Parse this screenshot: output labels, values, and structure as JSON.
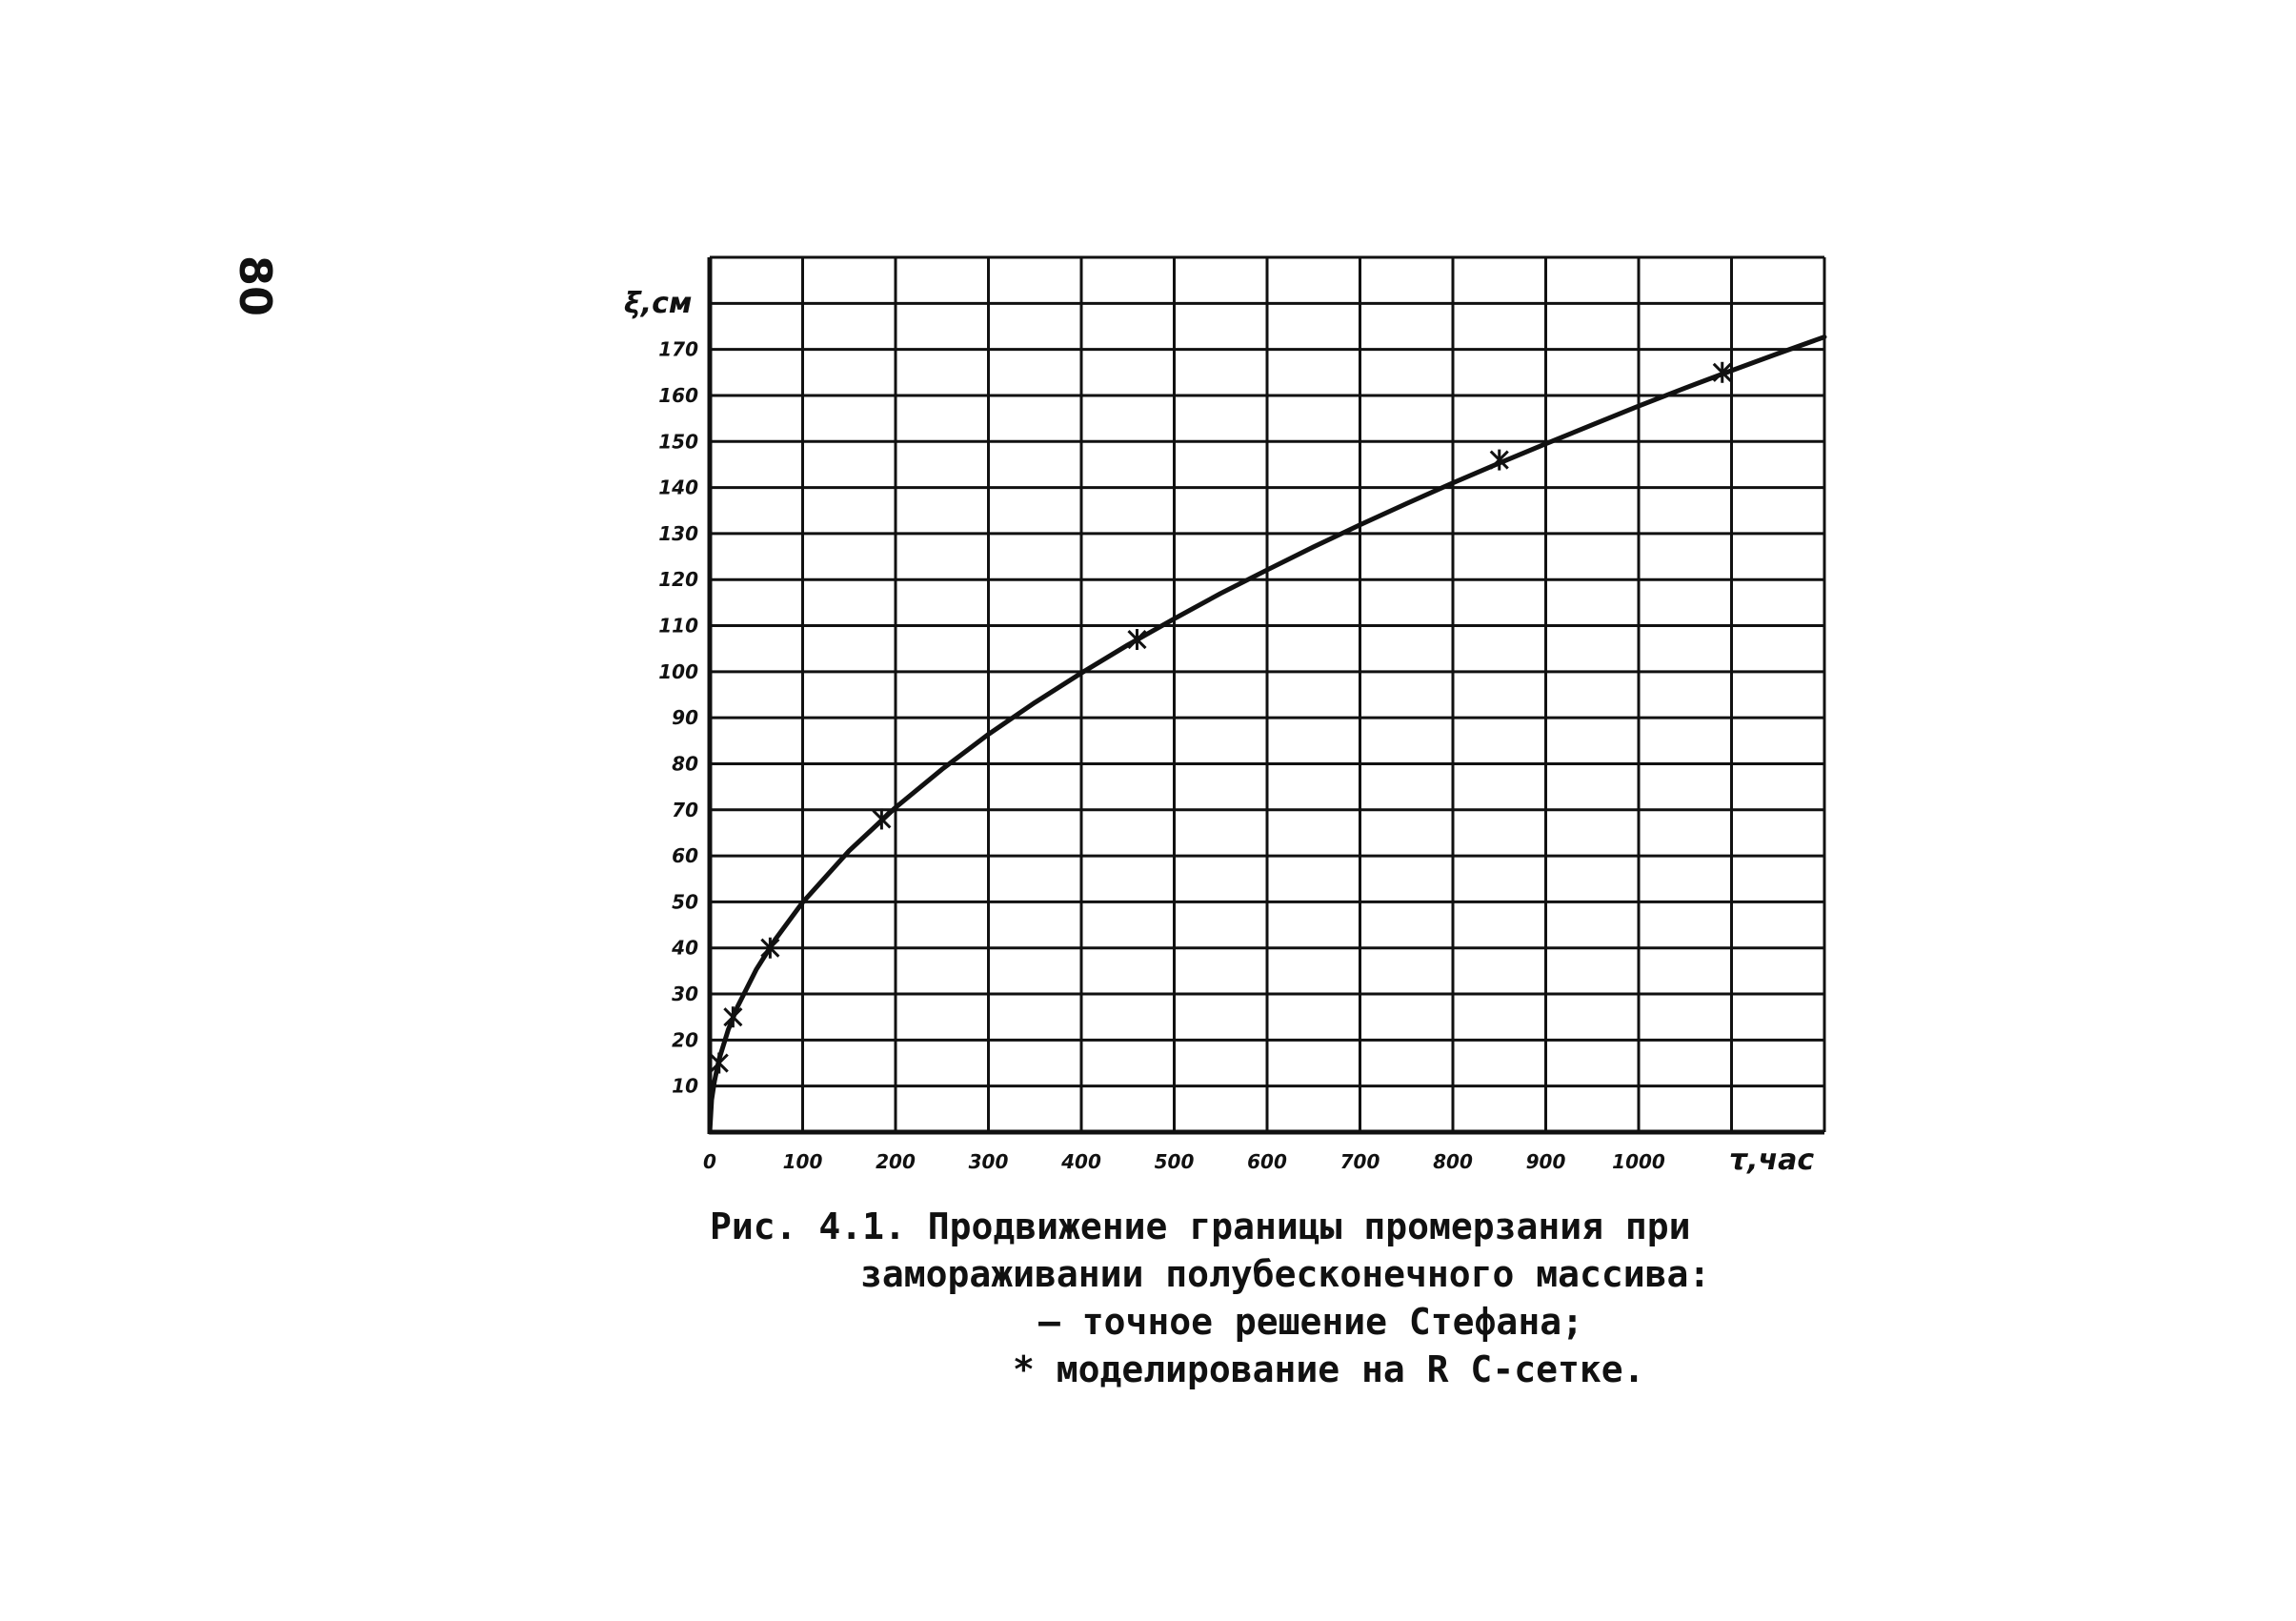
{
  "page": {
    "number": "80"
  },
  "caption": {
    "line1": "Рис. 4.1. Продвижение границы промерзания при",
    "line2": "замораживании полубесконечного массива:",
    "line3": "— точное решение Стефана;",
    "line4": "* моделирование на R C-сетке."
  },
  "chart_data": {
    "type": "line",
    "xlabel": "τ,час",
    "ylabel": "ξ,см",
    "xlim": [
      0,
      1200
    ],
    "ylim": [
      0,
      190
    ],
    "x_ticks": [
      0,
      100,
      200,
      300,
      400,
      500,
      600,
      700,
      800,
      900,
      1000
    ],
    "x_tick_labels": [
      "0",
      "100",
      "200",
      "300",
      "400",
      "500",
      "600",
      "700",
      "800",
      "900",
      "1000"
    ],
    "y_ticks": [
      10,
      20,
      30,
      40,
      50,
      60,
      70,
      80,
      90,
      100,
      110,
      120,
      130,
      140,
      150,
      160,
      170
    ],
    "y_tick_labels": [
      "10",
      "20",
      "30",
      "40",
      "50",
      "60",
      "70",
      "80",
      "90",
      "100",
      "110",
      "120",
      "130",
      "140",
      "150",
      "160",
      "170"
    ],
    "grid": true,
    "series": [
      {
        "name": "точное решение Стефана",
        "style": "line",
        "x": [
          0,
          2,
          5,
          10,
          20,
          30,
          50,
          70,
          100,
          150,
          200,
          250,
          300,
          350,
          400,
          450,
          500,
          550,
          600,
          650,
          700,
          750,
          800,
          850,
          900,
          950,
          1000,
          1050,
          1100,
          1150,
          1200
        ],
        "y": [
          0,
          7,
          11,
          15.8,
          22.3,
          27.3,
          35.3,
          41.7,
          49.9,
          61.1,
          70.5,
          78.8,
          86.4,
          93.3,
          99.7,
          105.8,
          111.5,
          117,
          122.1,
          127.1,
          131.9,
          136.5,
          141,
          145.3,
          149.5,
          153.6,
          157.7,
          161.6,
          165.4,
          169.1,
          172.7
        ]
      },
      {
        "name": "моделирование на R C-сетке",
        "style": "markers",
        "marker": "*",
        "x": [
          10,
          25,
          65,
          185,
          460,
          850,
          1090
        ],
        "y": [
          15,
          25,
          40,
          68,
          107,
          146,
          165
        ]
      }
    ],
    "colors": {
      "line": "#111111",
      "grid": "#111111",
      "background": "#ffffff"
    }
  }
}
